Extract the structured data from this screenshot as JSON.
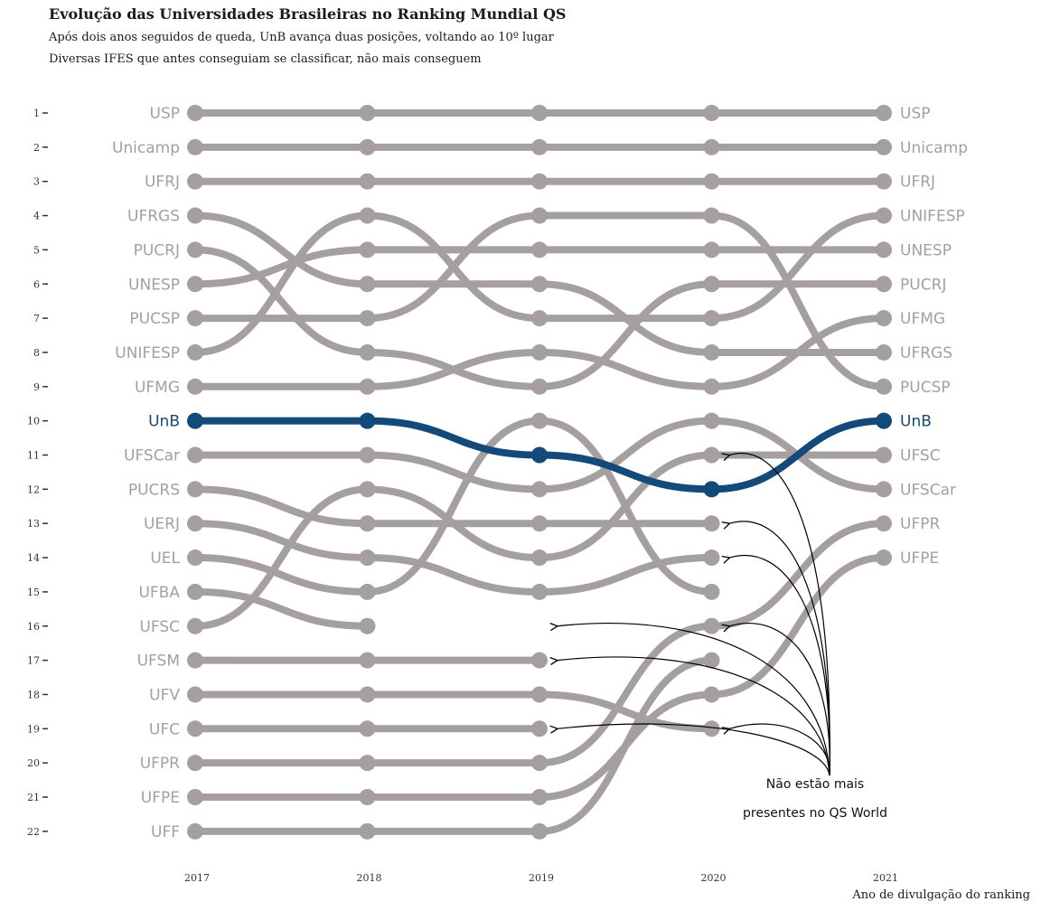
{
  "chart_data": {
    "type": "line",
    "title": "Evolução das Universidades Brasileiras no Ranking Mundial QS",
    "subtitle": [
      "Após dois anos seguidos de queda, UnB avança duas posições, voltando ao 10º lugar",
      "Diversas IFES que antes conseguiam se classificar, não mais conseguem"
    ],
    "xlabel": "Ano de divulgação do ranking",
    "ylabel": "",
    "x": [
      "2017",
      "2018",
      "2019",
      "2020",
      "2021"
    ],
    "ylim": [
      1,
      22
    ],
    "y_reversed": true,
    "y_ticks": [
      1,
      2,
      3,
      4,
      5,
      6,
      7,
      8,
      9,
      10,
      11,
      12,
      13,
      14,
      15,
      16,
      17,
      18,
      19,
      20,
      21,
      22
    ],
    "grid": false,
    "colors": {
      "default": "#a59f9f",
      "highlight": "#144a79",
      "annotation": "#000000"
    },
    "highlight_series": "UnB",
    "series": [
      {
        "name": "USP",
        "values": [
          1,
          1,
          1,
          1,
          1
        ]
      },
      {
        "name": "Unicamp",
        "values": [
          2,
          2,
          2,
          2,
          2
        ]
      },
      {
        "name": "UFRJ",
        "values": [
          3,
          3,
          3,
          3,
          3
        ]
      },
      {
        "name": "UFRGS",
        "values": [
          4,
          6,
          6,
          8,
          8
        ]
      },
      {
        "name": "PUCRJ",
        "values": [
          5,
          8,
          9,
          6,
          6
        ]
      },
      {
        "name": "UNESP",
        "values": [
          6,
          5,
          5,
          5,
          5
        ]
      },
      {
        "name": "PUCSP",
        "values": [
          7,
          7,
          4,
          4,
          9
        ]
      },
      {
        "name": "UNIFESP",
        "values": [
          8,
          4,
          7,
          7,
          4
        ]
      },
      {
        "name": "UFMG",
        "values": [
          9,
          9,
          8,
          9,
          7
        ]
      },
      {
        "name": "UnB",
        "values": [
          10,
          10,
          11,
          12,
          10
        ]
      },
      {
        "name": "UFSCar",
        "values": [
          11,
          11,
          12,
          10,
          12
        ]
      },
      {
        "name": "PUCRS",
        "values": [
          12,
          13,
          13,
          13,
          null
        ]
      },
      {
        "name": "UERJ",
        "values": [
          13,
          14,
          15,
          14,
          null
        ]
      },
      {
        "name": "UEL",
        "values": [
          14,
          15,
          10,
          15,
          null
        ]
      },
      {
        "name": "UFBA",
        "values": [
          15,
          16,
          null,
          null,
          null
        ]
      },
      {
        "name": "UFSC",
        "values": [
          16,
          12,
          14,
          11,
          11
        ]
      },
      {
        "name": "UFSM",
        "values": [
          17,
          17,
          17,
          null,
          null
        ]
      },
      {
        "name": "UFV",
        "values": [
          18,
          18,
          18,
          19,
          null
        ]
      },
      {
        "name": "UFC",
        "values": [
          19,
          19,
          19,
          null,
          null
        ]
      },
      {
        "name": "UFPR",
        "values": [
          20,
          20,
          20,
          16,
          13
        ]
      },
      {
        "name": "UFPE",
        "values": [
          21,
          21,
          21,
          18,
          14
        ]
      },
      {
        "name": "UFF",
        "values": [
          22,
          22,
          22,
          17,
          null
        ]
      }
    ],
    "left_labels": [
      "USP",
      "Unicamp",
      "UFRJ",
      "UFRGS",
      "PUCRJ",
      "UNESP",
      "PUCSP",
      "UNIFESP",
      "UFMG",
      "UnB",
      "UFSCar",
      "PUCRS",
      "UERJ",
      "UEL",
      "UFBA",
      "UFSC",
      "UFSM",
      "UFV",
      "UFC",
      "UFPR",
      "UFPE",
      "UFF"
    ],
    "right_labels": [
      "USP",
      "Unicamp",
      "UFRJ",
      "UNIFESP",
      "UNESP",
      "PUCRJ",
      "UFMG",
      "UFRGS",
      "PUCSP",
      "UnB",
      "UFSC",
      "UFSCar",
      "UFPR",
      "UFPE"
    ],
    "annotation": {
      "lines": [
        "Não estão mais",
        "presentes no QS World"
      ],
      "targets": [
        {
          "x": "2019",
          "y": 16
        },
        {
          "x": "2019",
          "y": 17
        },
        {
          "x": "2019",
          "y": 19
        },
        {
          "x": "2020",
          "y": 11
        },
        {
          "x": "2020",
          "y": 13
        },
        {
          "x": "2020",
          "y": 14
        },
        {
          "x": "2020",
          "y": 16
        },
        {
          "x": "2020",
          "y": 19
        }
      ]
    }
  }
}
